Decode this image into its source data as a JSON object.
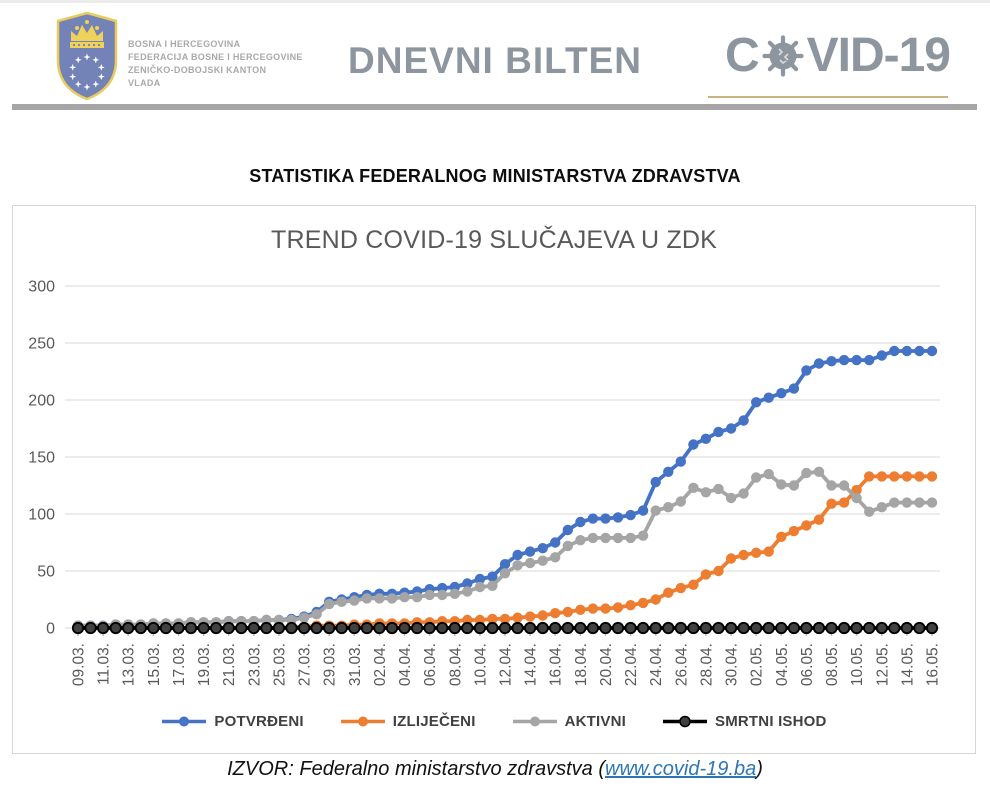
{
  "header": {
    "org_lines": [
      "BOSNA I HERCEGOVINA",
      "FEDERACIJA BOSNE I HERCEGOVINE",
      "ZENIČKO-DOBOJSKI KANTON",
      "VLADA"
    ],
    "bulletin_title": "DNEVNI BILTEN",
    "covid_logo_prefix": "C",
    "covid_logo_suffix": "VID-19"
  },
  "section_heading": "STATISTIKA FEDERALNOG MINISTARSTVA ZDRAVSTVA",
  "chart_data": {
    "type": "line",
    "title": "TREND COVID-19 SLUČAJEVA U ZDK",
    "ylim": [
      0,
      300
    ],
    "y_ticks": [
      0,
      50,
      100,
      150,
      200,
      250,
      300
    ],
    "grid": true,
    "legend_position": "bottom",
    "x_tick_step": 2,
    "x": [
      "09.03.",
      "10.03.",
      "11.03.",
      "12.03.",
      "13.03.",
      "14.03.",
      "15.03.",
      "16.03.",
      "17.03.",
      "18.03.",
      "19.03.",
      "20.03.",
      "21.03.",
      "22.03.",
      "23.03.",
      "24.03.",
      "25.03.",
      "26.03.",
      "27.03.",
      "28.03.",
      "29.03.",
      "30.03.",
      "31.03.",
      "01.04.",
      "02.04.",
      "03.04.",
      "04.04.",
      "05.04.",
      "06.04.",
      "07.04.",
      "08.04.",
      "09.04.",
      "10.04.",
      "11.04.",
      "12.04.",
      "13.04.",
      "14.04.",
      "15.04.",
      "16.04.",
      "17.04.",
      "18.04.",
      "19.04.",
      "20.04.",
      "21.04.",
      "22.04.",
      "23.04.",
      "24.04.",
      "25.04.",
      "26.04.",
      "27.04.",
      "28.04.",
      "29.04.",
      "30.04.",
      "01.05.",
      "02.05.",
      "03.05.",
      "04.05.",
      "05.05.",
      "06.05.",
      "07.05.",
      "08.05.",
      "09.05.",
      "10.05.",
      "11.05.",
      "12.05.",
      "13.05.",
      "14.05.",
      "15.05.",
      "16.05."
    ],
    "series": [
      {
        "key": "potvrdjeni",
        "name": "POTVRĐENI",
        "color": "#4472C4",
        "values": [
          2,
          2,
          2,
          3,
          3,
          3,
          4,
          4,
          4,
          5,
          5,
          5,
          6,
          6,
          6,
          7,
          7,
          8,
          10,
          14,
          23,
          25,
          27,
          29,
          30,
          30,
          31,
          32,
          34,
          35,
          36,
          39,
          43,
          45,
          56,
          64,
          67,
          70,
          75,
          86,
          93,
          96,
          96,
          97,
          99,
          103,
          128,
          137,
          146,
          161,
          166,
          172,
          175,
          182,
          198,
          202,
          206,
          210,
          226,
          232,
          234,
          235,
          235,
          235,
          239,
          243,
          243,
          243,
          243
        ]
      },
      {
        "key": "izlijeceni",
        "name": "IZLIJEČENI",
        "color": "#ED7D31",
        "values": [
          0,
          0,
          0,
          0,
          0,
          0,
          0,
          0,
          0,
          0,
          0,
          0,
          0,
          0,
          0,
          0,
          0,
          1,
          1,
          2,
          2,
          2,
          3,
          3,
          4,
          4,
          4,
          5,
          5,
          6,
          6,
          7,
          7,
          8,
          8,
          9,
          10,
          11,
          13,
          14,
          16,
          17,
          17,
          18,
          20,
          22,
          25,
          31,
          35,
          38,
          47,
          50,
          61,
          64,
          66,
          67,
          80,
          85,
          90,
          95,
          109,
          110,
          121,
          133,
          133,
          133,
          133,
          133,
          133
        ]
      },
      {
        "key": "aktivni",
        "name": "AKTIVNI",
        "color": "#A5A5A5",
        "values": [
          2,
          2,
          2,
          3,
          3,
          3,
          4,
          4,
          4,
          5,
          5,
          5,
          6,
          6,
          6,
          7,
          7,
          7,
          9,
          12,
          21,
          23,
          24,
          26,
          26,
          26,
          27,
          27,
          29,
          29,
          30,
          32,
          36,
          37,
          48,
          55,
          57,
          59,
          62,
          72,
          77,
          79,
          79,
          79,
          79,
          81,
          103,
          106,
          111,
          123,
          119,
          122,
          114,
          118,
          132,
          135,
          126,
          125,
          136,
          137,
          125,
          125,
          114,
          102,
          106,
          110,
          110,
          110,
          110
        ]
      },
      {
        "key": "smrtni-ishod",
        "name": "SMRTNI ISHOD",
        "color": "#000000",
        "marker_fill": "#404040",
        "marker_stroke": "#000000",
        "values": [
          0,
          0,
          0,
          0,
          0,
          0,
          0,
          0,
          0,
          0,
          0,
          0,
          0,
          0,
          0,
          0,
          0,
          0,
          0,
          0,
          0,
          0,
          0,
          0,
          0,
          0,
          0,
          0,
          0,
          0,
          0,
          0,
          0,
          0,
          0,
          0,
          0,
          0,
          0,
          0,
          0,
          0,
          0,
          0,
          0,
          0,
          0,
          0,
          0,
          0,
          0,
          0,
          0,
          0,
          0,
          0,
          0,
          0,
          0,
          0,
          0,
          0,
          0,
          0,
          0,
          0,
          0,
          0,
          0
        ]
      }
    ]
  },
  "footer": {
    "source_prefix": "IZVOR: Federalno ministarstvo zdravstva (",
    "link_text": "www.covid-19.ba",
    "source_suffix": ")"
  },
  "colors": {
    "accent_blue": "#4472C4",
    "accent_orange": "#ED7D31",
    "accent_gray": "#A5A5A5",
    "accent_black": "#000000",
    "header_gray": "#8D959E",
    "divider_gray": "#A6A6A6",
    "gold_underline": "#C8B480",
    "title_gray": "#595959",
    "gridline_gray": "#D9D9D9",
    "link_blue": "#2E75B6"
  }
}
